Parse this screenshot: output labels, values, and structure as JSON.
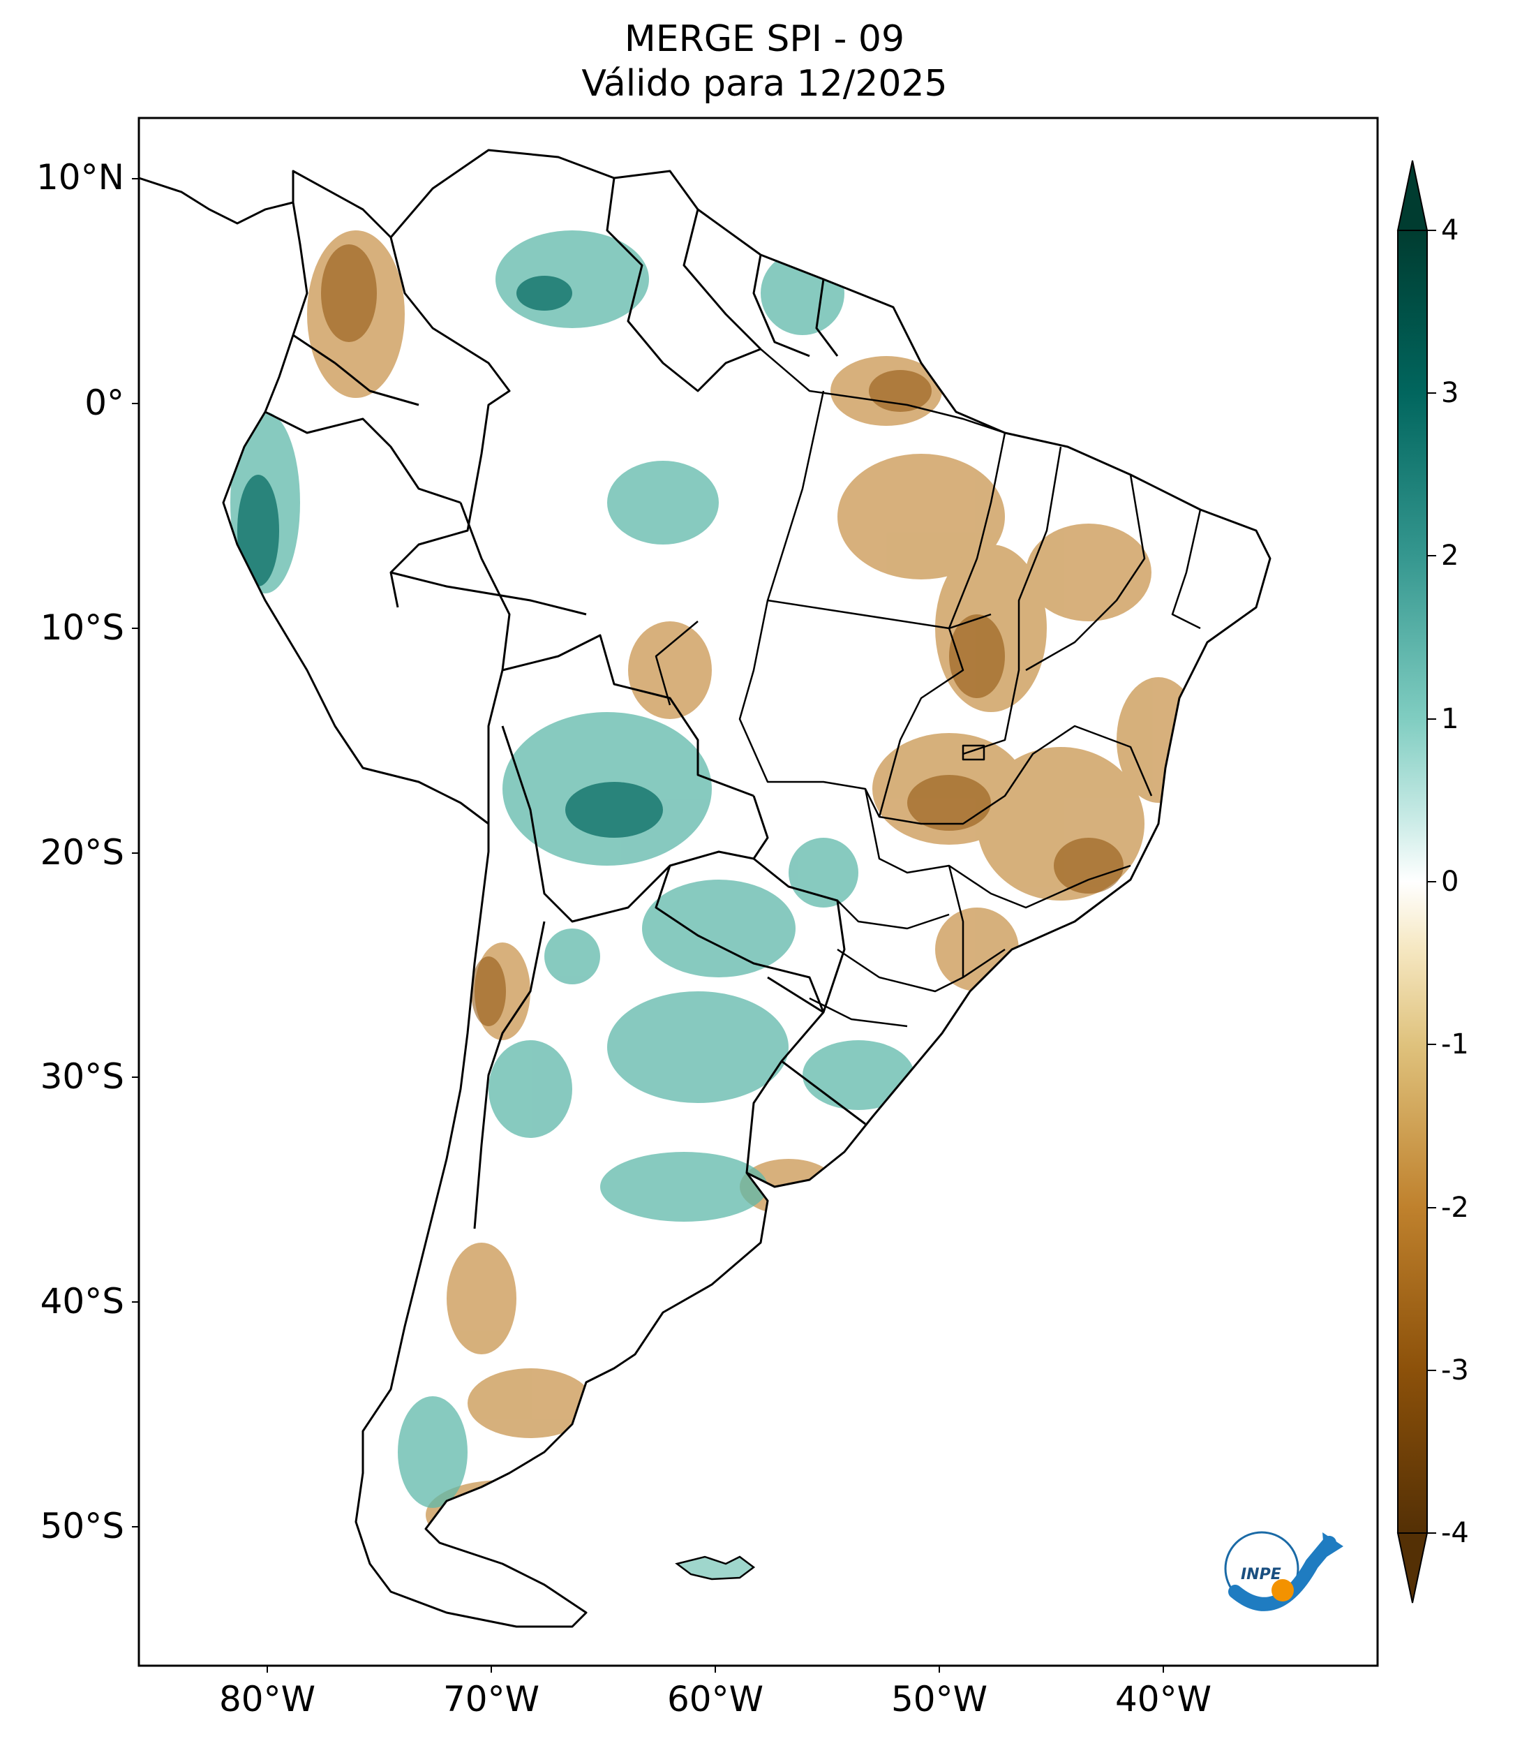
{
  "title": {
    "line1": "MERGE   SPI - 09",
    "line2": "Válido para 12/2025"
  },
  "axes": {
    "lat_ticks": [
      "10°N",
      "0°",
      "10°S",
      "20°S",
      "30°S",
      "40°S",
      "50°S"
    ],
    "lon_ticks": [
      "80°W",
      "70°W",
      "60°W",
      "50°W",
      "40°W"
    ]
  },
  "colorbar": {
    "ticks": [
      "4",
      "3",
      "2",
      "1",
      "0",
      "-1",
      "-2",
      "-3",
      "-4"
    ],
    "range": [
      -4,
      4
    ],
    "extend": "both",
    "colors": [
      "#543005",
      "#8c510a",
      "#bf812d",
      "#dfc27d",
      "#f6e8c3",
      "#ffffff",
      "#c7eae5",
      "#80cdc1",
      "#35978f",
      "#01665e",
      "#003c30"
    ]
  },
  "logo": {
    "text": "INPE"
  },
  "colors": {
    "dry": "#b07a30",
    "wet": "#2a9d8f",
    "border": "#000000"
  }
}
